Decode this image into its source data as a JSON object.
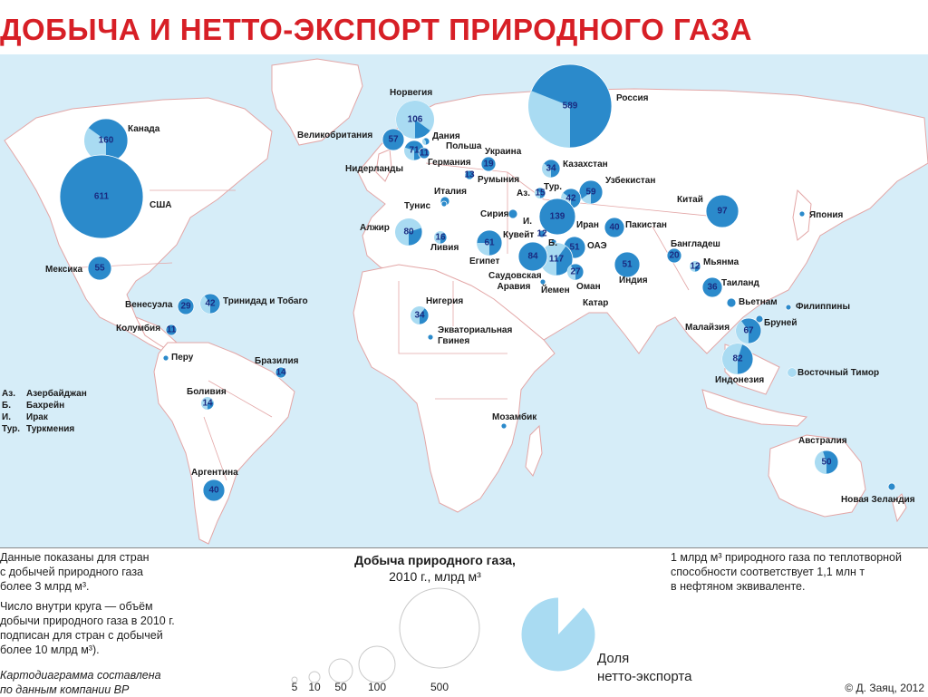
{
  "title": "ДОБЫЧА И НЕТТО-ЭКСПОРТ ПРИРОДНОГО ГАЗА",
  "colors": {
    "ocean": "#d6edf8",
    "land": "#ffffff",
    "border": "#e3a6a6",
    "circle_fill": "#2b8acb",
    "export_fill": "#a9dbf2",
    "number_text": "#1a2b80",
    "title": "#d71f26"
  },
  "countries": [
    {
      "name": "Норвегия",
      "value": "106",
      "export_share": 0.85
    },
    {
      "name": "Великобритания",
      "value": "57",
      "export_share": 0
    },
    {
      "name": "Дания",
      "value": "",
      "export_share": 0.4
    },
    {
      "name": "Польша",
      "value": "",
      "export_share": 0
    },
    {
      "name": "Нидерланды",
      "value": "71",
      "export_share": 0.3
    },
    {
      "name": "Германия",
      "value": "11",
      "export_share": 0
    },
    {
      "name": "Украина",
      "value": "19",
      "export_share": 0
    },
    {
      "name": "Румыния",
      "value": "13",
      "export_share": 0
    },
    {
      "name": "Италия",
      "value": "",
      "export_share": 0
    },
    {
      "name": "Россия",
      "value": "589",
      "export_share": 0.31
    },
    {
      "name": "Казахстан",
      "value": "34",
      "export_share": 0.35
    },
    {
      "name": "Узбекистан",
      "value": "59",
      "export_share": 0.15
    },
    {
      "name": "Аз.",
      "value": "15",
      "export_share": 0.4
    },
    {
      "name": "Тур.",
      "value": "42",
      "export_share": 0.35
    },
    {
      "name": "Иран",
      "value": "139",
      "export_share": 0
    },
    {
      "name": "Пакистан",
      "value": "40",
      "export_share": 0
    },
    {
      "name": "Китай",
      "value": "97",
      "export_share": 0
    },
    {
      "name": "Япония",
      "value": "",
      "export_share": 0
    },
    {
      "name": "Сирия",
      "value": "",
      "export_share": 0
    },
    {
      "name": "И.",
      "value": "",
      "export_share": 0
    },
    {
      "name": "Кувейт",
      "value": "12",
      "export_share": 0
    },
    {
      "name": "Б.",
      "value": "",
      "export_share": 0
    },
    {
      "name": "ОАЭ",
      "value": "51",
      "export_share": 0
    },
    {
      "name": "Катар",
      "value": "117",
      "export_share": 0.6
    },
    {
      "name": "Саудовская Аравия",
      "value": "84",
      "export_share": 0
    },
    {
      "name": "Оман",
      "value": "27",
      "export_share": 0.4
    },
    {
      "name": "Йемен",
      "value": "",
      "export_share": 0
    },
    {
      "name": "Египет",
      "value": "61",
      "export_share": 0.25
    },
    {
      "name": "Ливия",
      "value": "16",
      "export_share": 0.6
    },
    {
      "name": "Тунис",
      "value": "",
      "export_share": 0
    },
    {
      "name": "Алжир",
      "value": "80",
      "export_share": 0.7
    },
    {
      "name": "Индия",
      "value": "51",
      "export_share": 0
    },
    {
      "name": "Бангладеш",
      "value": "20",
      "export_share": 0
    },
    {
      "name": "Мьянма",
      "value": "12",
      "export_share": 0.7
    },
    {
      "name": "Таиланд",
      "value": "36",
      "export_share": 0
    },
    {
      "name": "Вьетнам",
      "value": "",
      "export_share": 0
    },
    {
      "name": "Филиппины",
      "value": "",
      "export_share": 0
    },
    {
      "name": "Бруней",
      "value": "",
      "export_share": 0
    },
    {
      "name": "Малайзия",
      "value": "67",
      "export_share": 0.4
    },
    {
      "name": "Индонезия",
      "value": "82",
      "export_share": 0.55
    },
    {
      "name": "Восточный Тимор",
      "value": "",
      "export_share": 1
    },
    {
      "name": "Австралия",
      "value": "50",
      "export_share": 0.45
    },
    {
      "name": "Новая Зеландия",
      "value": "",
      "export_share": 0
    },
    {
      "name": "Канада",
      "value": "160",
      "export_share": 0.35
    },
    {
      "name": "США",
      "value": "611",
      "export_share": 0
    },
    {
      "name": "Мексика",
      "value": "55",
      "export_share": 0
    },
    {
      "name": "Венесуэла",
      "value": "29",
      "export_share": 0
    },
    {
      "name": "Тринидад и Тобаго",
      "value": "42",
      "export_share": 0.4
    },
    {
      "name": "Колумбия",
      "value": "11",
      "export_share": 0
    },
    {
      "name": "Перу",
      "value": "",
      "export_share": 0
    },
    {
      "name": "Бразилия",
      "value": "14",
      "export_share": 0
    },
    {
      "name": "Боливия",
      "value": "14",
      "export_share": 0.7
    },
    {
      "name": "Аргентина",
      "value": "40",
      "export_share": 0
    },
    {
      "name": "Нигерия",
      "value": "34",
      "export_share": 0.6
    },
    {
      "name": "Экваториальная Гвинея",
      "value": "",
      "export_share": 0
    },
    {
      "name": "Мозамбик",
      "value": "",
      "export_share": 0
    }
  ],
  "abbreviation_key": [
    {
      "abbr": "Аз.",
      "full": "Азербайджан"
    },
    {
      "abbr": "Б.",
      "full": "Бахрейн"
    },
    {
      "abbr": "И.",
      "full": "Ирак"
    },
    {
      "abbr": "Тур.",
      "full": "Туркмения"
    }
  ],
  "notes": {
    "threshold": [
      "Данные показаны для стран",
      "с добычей природного газа",
      "более 3 млрд м³."
    ],
    "circle_number": [
      "Число внутри круга — объём",
      "добычи природного газа в 2010 г.",
      "подписан для стран с добычей",
      "более 10 млрд м³)."
    ],
    "source": [
      "Картодиаграмма составлена",
      "по данным компании BP"
    ],
    "conversion": [
      "1 млрд м³ природного газа по теплотворной",
      "способности соответствует 1,1 млн т",
      "в нефтяном эквиваленте."
    ]
  },
  "legend": {
    "title_bold": "Добыча природного газа,",
    "title_unit": "2010 г., млрд м³",
    "scale_values": [
      "5",
      "10",
      "50",
      "100",
      "500"
    ],
    "share_label_line1": "Доля",
    "share_label_line2": "нетто-экспорта"
  },
  "credit": "© Д. Заяц, 2012"
}
